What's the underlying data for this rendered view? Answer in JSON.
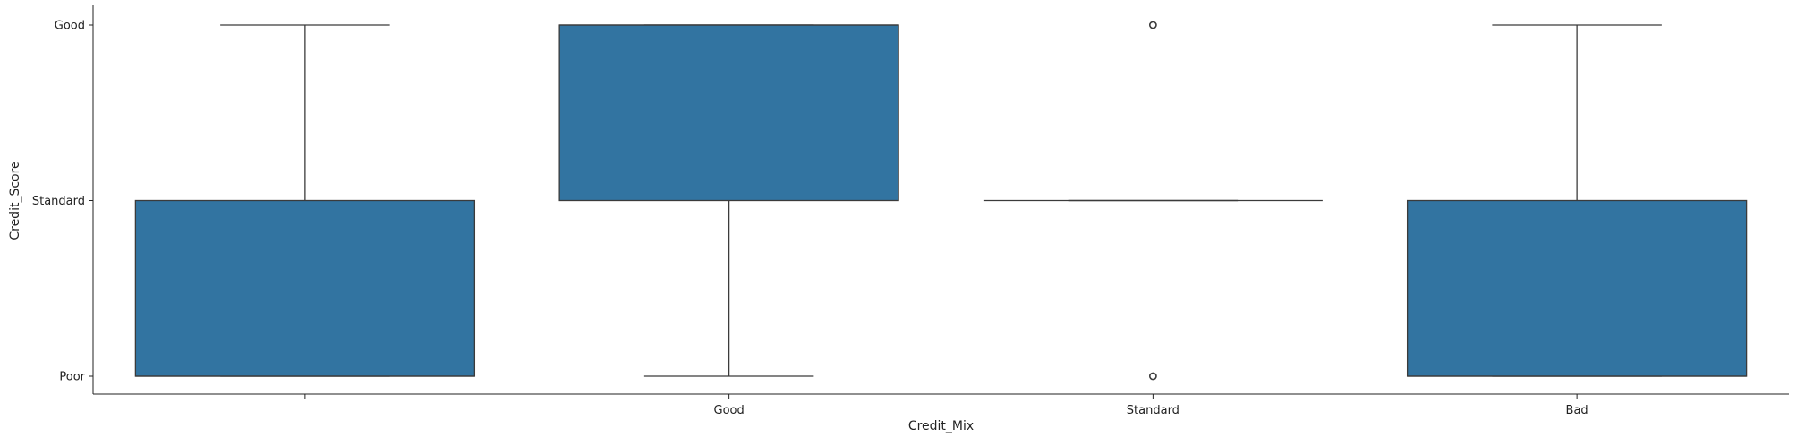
{
  "chart_data": {
    "type": "boxplot",
    "title": "",
    "xlabel": "Credit_Mix",
    "ylabel": "Credit_Score",
    "categories": [
      "_",
      "Good",
      "Standard",
      "Bad"
    ],
    "y_categories": [
      "Poor",
      "Standard",
      "Good"
    ],
    "series": [
      {
        "box_color": "#3274a1",
        "line_color": "#3b3b3b",
        "boxes": [
          {
            "whisker_low": 0,
            "q1": 0,
            "median": 0,
            "q3": 1,
            "whisker_high": 2,
            "outliers": []
          },
          {
            "whisker_low": 0,
            "q1": 1,
            "median": 2,
            "q3": 2,
            "whisker_high": 2,
            "outliers": []
          },
          {
            "whisker_low": 1,
            "q1": 1,
            "median": 1,
            "q3": 1,
            "whisker_high": 1,
            "outliers": [
              0,
              2
            ]
          },
          {
            "whisker_low": 0,
            "q1": 0,
            "median": 0,
            "q3": 1,
            "whisker_high": 2,
            "outliers": []
          }
        ]
      }
    ],
    "grid": false,
    "legend": "none"
  }
}
